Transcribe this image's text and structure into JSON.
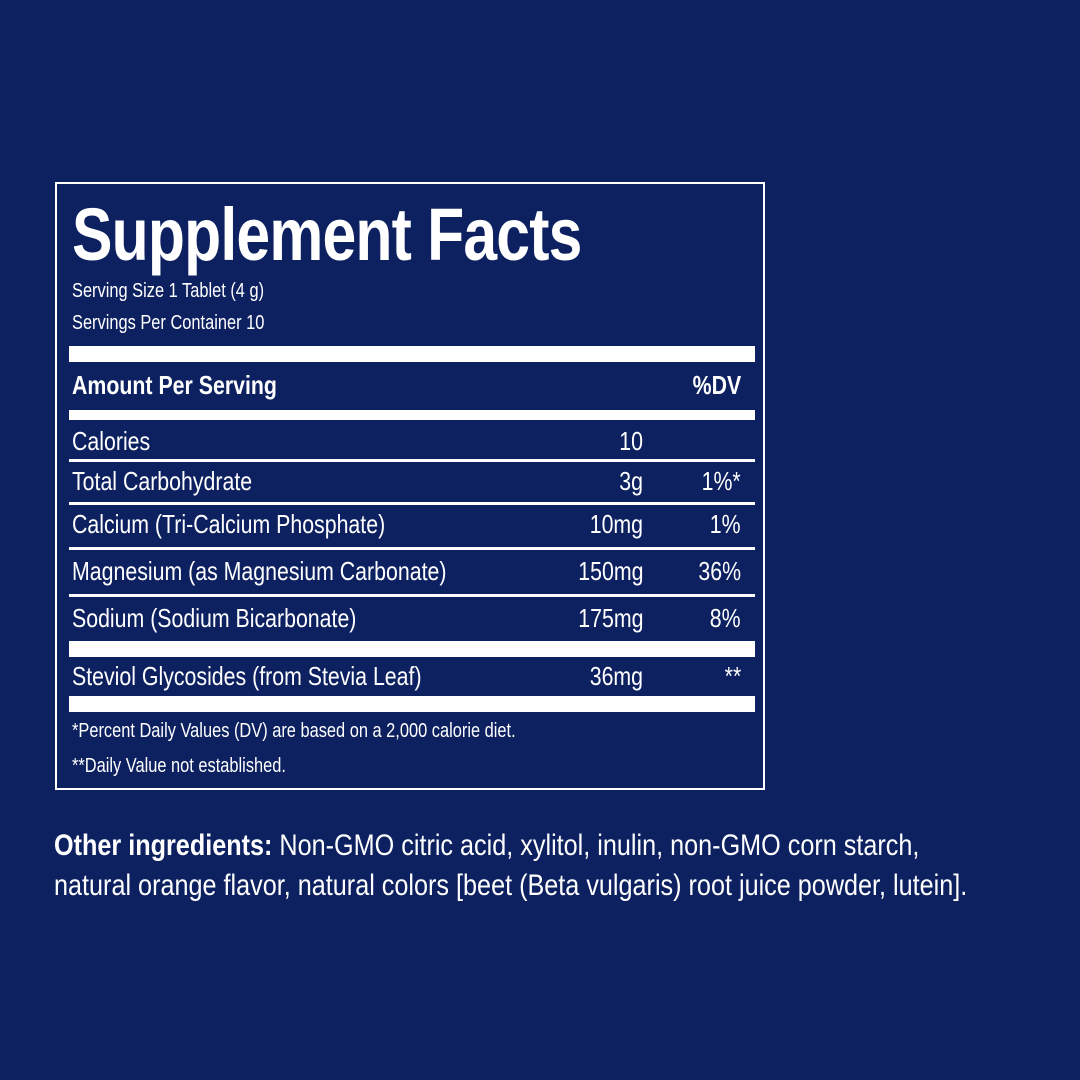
{
  "label": {
    "title": "Supplement Facts",
    "serving_size": "Serving Size 1 Tablet (4 g)",
    "servings_per_container": "Servings Per Container 10",
    "header": {
      "amount": "Amount Per Serving",
      "dv": "%DV"
    },
    "rows": [
      {
        "name": "Calories",
        "amount": "10",
        "dv": ""
      },
      {
        "name": "Total Carbohydrate",
        "amount": "3g",
        "dv": "1%*"
      },
      {
        "name": "Calcium (Tri-Calcium Phosphate)",
        "amount": "10mg",
        "dv": "1%"
      },
      {
        "name": "Magnesium (as Magnesium Carbonate)",
        "amount": "150mg",
        "dv": "36%"
      },
      {
        "name": "Sodium (Sodium Bicarbonate)",
        "amount": "175mg",
        "dv": "8%"
      },
      {
        "name": "Steviol Glycosides (from Stevia Leaf)",
        "amount": "36mg",
        "dv": "**"
      }
    ],
    "footnotes": [
      "*Percent Daily Values (DV) are based on a 2,000 calorie diet.",
      "**Daily Value not established."
    ]
  },
  "other_ingredients": {
    "label": "Other ingredients:",
    "line1": " Non-GMO citric acid, xylitol, inulin, non-GMO corn starch,",
    "line2": "natural orange flavor, natural colors [beet (Beta vulgaris) root juice powder, lutein]."
  },
  "colors": {
    "background": "#0d2160",
    "text": "#ffffff"
  }
}
